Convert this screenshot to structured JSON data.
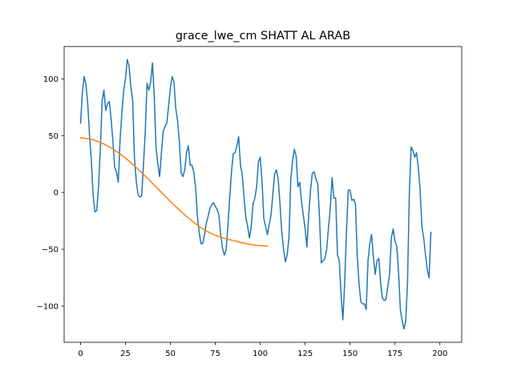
{
  "chart_data": {
    "type": "line",
    "title": "grace_lwe_cm SHATT AL ARAB",
    "xlabel": "",
    "ylabel": "",
    "xlim": [
      -9.15,
      212.15
    ],
    "ylim": [
      -131.8,
      128.4
    ],
    "x_ticks": [
      0,
      25,
      50,
      75,
      100,
      125,
      150,
      175,
      200
    ],
    "y_ticks": [
      -100,
      -50,
      0,
      50,
      100
    ],
    "grid": false,
    "series": [
      {
        "color": "#1f77b4",
        "values": [
          61,
          88,
          102,
          95,
          78,
          50,
          28,
          -3,
          -17,
          -16,
          5,
          38,
          80,
          90,
          72,
          78,
          80,
          65,
          45,
          22,
          18,
          9,
          47,
          70,
          90,
          100,
          117,
          111,
          93,
          81,
          30,
          10,
          -2,
          -4,
          -3,
          24,
          53,
          96,
          90,
          97,
          114,
          85,
          40,
          25,
          14,
          35,
          54,
          58,
          61,
          76,
          92,
          102,
          97,
          74,
          63,
          44,
          17,
          14,
          20,
          35,
          41,
          24,
          24,
          18,
          5,
          -20,
          -35,
          -45,
          -45,
          -37,
          -27,
          -21,
          -14,
          -11,
          -9,
          -12,
          -15,
          -20,
          -37,
          -49,
          -55,
          -51,
          -30,
          -5,
          18,
          34,
          35,
          41,
          49,
          24,
          16,
          -5,
          -22,
          -30,
          -40,
          -30,
          -10,
          -5,
          5,
          27,
          31,
          10,
          -23,
          -30,
          -37,
          -28,
          -20,
          -2,
          16,
          20,
          12,
          -10,
          -35,
          -50,
          -61,
          -55,
          -40,
          11,
          28,
          38,
          32,
          5,
          9,
          -8,
          -20,
          -32,
          -48,
          -20,
          2,
          17,
          18,
          12,
          8,
          -22,
          -62,
          -60,
          -58,
          -50,
          -31,
          -14,
          13,
          -5,
          -5,
          -55,
          -60,
          -90,
          -112,
          -80,
          -35,
          2,
          2,
          -7,
          -6,
          -10,
          -55,
          -80,
          -96,
          -98,
          -98,
          -103,
          -60,
          -45,
          -37,
          -57,
          -72,
          -60,
          -58,
          -79,
          -93,
          -95,
          -94,
          -83,
          -72,
          -40,
          -32,
          -43,
          -47,
          -70,
          -103,
          -113,
          -120,
          -113,
          -79,
          0,
          40,
          37,
          31,
          35,
          22,
          2,
          -30,
          -40,
          -55,
          -68,
          -75,
          -35
        ]
      },
      {
        "color": "#ff7f0e",
        "values": [
          48,
          47.9,
          47.8,
          47.6,
          47.3,
          47,
          46.6,
          46.2,
          45.7,
          45.2,
          44.6,
          44,
          43.3,
          42.6,
          41.8,
          41,
          40.1,
          39.2,
          38.2,
          37.2,
          36.1,
          35,
          33.9,
          32.7,
          31.5,
          30.2,
          28.9,
          27.6,
          26.2,
          24.8,
          23.4,
          22,
          20.5,
          19,
          17.5,
          16,
          14.4,
          12.9,
          11.3,
          9.7,
          8.1,
          6.5,
          4.9,
          3.3,
          1.7,
          0.1,
          -1.5,
          -3.1,
          -4.7,
          -6.3,
          -7.8,
          -9.4,
          -10.9,
          -12.4,
          -13.9,
          -15.4,
          -16.9,
          -18.3,
          -19.7,
          -21.1,
          -22.4,
          -23.7,
          -25,
          -26.2,
          -27.4,
          -28.6,
          -29.7,
          -30.8,
          -31.8,
          -32.8,
          -33.7,
          -34.6,
          -35.4,
          -36.2,
          -36.9,
          -37.6,
          -38.2,
          -38.8,
          -39.3,
          -39.8,
          -40.3,
          -40.7,
          -41.1,
          -41.5,
          -41.9,
          -42.3,
          -42.7,
          -43.1,
          -43.5,
          -43.9,
          -44.3,
          -44.6,
          -44.9,
          -45.2,
          -45.5,
          -45.8,
          -46.1,
          -46.3,
          -46.5,
          -46.7,
          -46.8,
          -46.9,
          -47,
          -47,
          -47
        ]
      }
    ]
  }
}
